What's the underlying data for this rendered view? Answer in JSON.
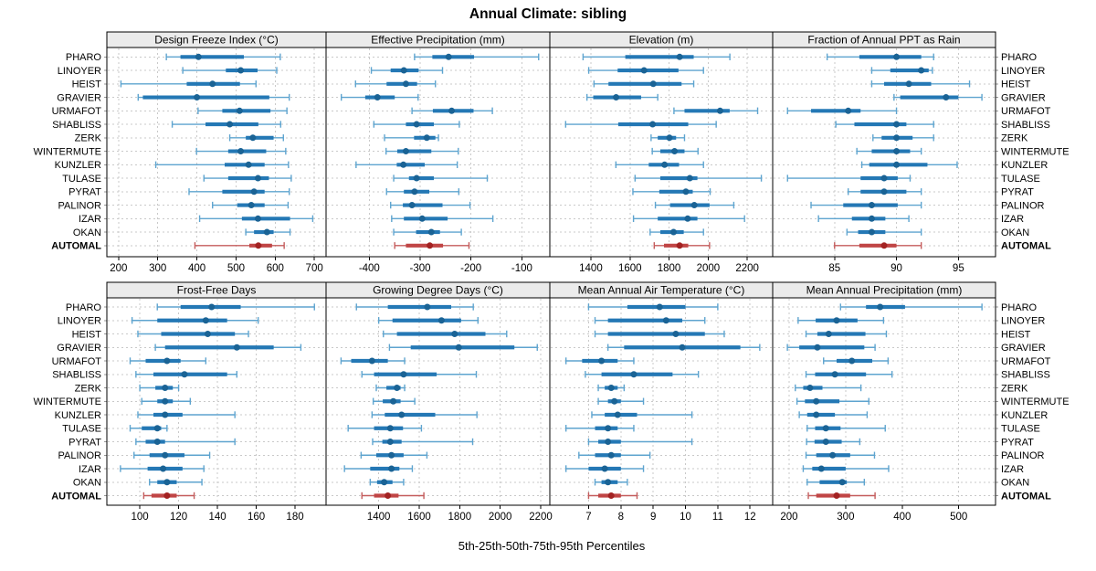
{
  "title": "Annual Climate: sibling",
  "caption": "5th-25th-50th-75th-95th Percentiles",
  "colors": {
    "blue_bar": "#2478b5",
    "blue_dot": "#1a6395",
    "blue_line": "#5ea4cf",
    "red_bar": "#c04545",
    "red_dot": "#a32222",
    "red_line": "#c45c5c",
    "grid": "#c9c9c9",
    "header_bg": "#ebebeb",
    "border": "#000000"
  },
  "chart_data": {
    "type": "percentile-dotplot",
    "layout": "2 rows x 4 columns lattice, shared row categories, dashed grid, bottom axes only",
    "percentiles": [
      "5th",
      "25th",
      "50th",
      "75th",
      "95th"
    ],
    "rows": [
      "PHARO",
      "LINOYER",
      "HEIST",
      "GRAVIER",
      "URMAFOT",
      "SHABLISS",
      "ZERK",
      "WINTERMUTE",
      "KUNZLER",
      "TULASE",
      "PYRAT",
      "PALINOR",
      "IZAR",
      "OKAN",
      "AUTOMAL"
    ],
    "highlight_row": "AUTOMAL",
    "panels": [
      {
        "title": "Design Freeze Index (°C)",
        "xlim": [
          170,
          730
        ],
        "ticks": [
          200,
          300,
          400,
          500,
          600,
          700
        ],
        "values": [
          [
            322,
            358,
            404,
            520,
            613
          ],
          [
            364,
            474,
            512,
            555,
            604
          ],
          [
            206,
            374,
            440,
            510,
            551
          ],
          [
            250,
            262,
            400,
            585,
            636
          ],
          [
            403,
            465,
            509,
            588,
            630
          ],
          [
            337,
            422,
            484,
            557,
            614
          ],
          [
            484,
            525,
            543,
            596,
            621
          ],
          [
            399,
            480,
            512,
            577,
            627
          ],
          [
            295,
            471,
            532,
            573,
            634
          ],
          [
            418,
            480,
            556,
            584,
            641
          ],
          [
            380,
            465,
            546,
            573,
            636
          ],
          [
            440,
            503,
            539,
            573,
            633
          ],
          [
            407,
            515,
            556,
            638,
            696
          ],
          [
            525,
            546,
            579,
            596,
            638
          ],
          [
            395,
            534,
            557,
            592,
            623
          ]
        ]
      },
      {
        "title": "Effective Precipitation (mm)",
        "xlim": [
          -485,
          -45
        ],
        "ticks": [
          -400,
          -300,
          -200,
          -100
        ],
        "values": [
          [
            -311,
            -276,
            -244,
            -194,
            -67
          ],
          [
            -396,
            -358,
            -332,
            -303,
            -256
          ],
          [
            -427,
            -366,
            -328,
            -306,
            -270
          ],
          [
            -455,
            -408,
            -384,
            -350,
            -304
          ],
          [
            -316,
            -275,
            -238,
            -195,
            -158
          ],
          [
            -391,
            -328,
            -307,
            -273,
            -223
          ],
          [
            -370,
            -312,
            -287,
            -270,
            -264
          ],
          [
            -367,
            -345,
            -328,
            -278,
            -225
          ],
          [
            -426,
            -346,
            -333,
            -291,
            -227
          ],
          [
            -352,
            -322,
            -307,
            -273,
            -168
          ],
          [
            -366,
            -332,
            -311,
            -282,
            -224
          ],
          [
            -358,
            -334,
            -316,
            -256,
            -202
          ],
          [
            -356,
            -332,
            -296,
            -246,
            -157
          ],
          [
            -352,
            -308,
            -278,
            -261,
            -219
          ],
          [
            -350,
            -328,
            -281,
            -255,
            -204
          ]
        ]
      },
      {
        "title": "Elevation (m)",
        "xlim": [
          1190,
          2330
        ],
        "ticks": [
          1400,
          1600,
          1800,
          2000,
          2200
        ],
        "values": [
          [
            1360,
            1576,
            1854,
            1926,
            2111
          ],
          [
            1389,
            1537,
            1672,
            1848,
            1976
          ],
          [
            1416,
            1490,
            1719,
            1864,
            1926
          ],
          [
            1380,
            1412,
            1529,
            1657,
            1742
          ],
          [
            1825,
            1879,
            2061,
            2110,
            2253
          ],
          [
            1271,
            1540,
            1716,
            1898,
            2041
          ],
          [
            1708,
            1742,
            1802,
            1836,
            1879
          ],
          [
            1714,
            1755,
            1828,
            1879,
            1948
          ],
          [
            1528,
            1696,
            1777,
            1851,
            1976
          ],
          [
            1626,
            1755,
            1906,
            1945,
            2272
          ],
          [
            1615,
            1750,
            1886,
            1921,
            2010
          ],
          [
            1730,
            1805,
            1929,
            2007,
            2131
          ],
          [
            1618,
            1742,
            1895,
            1945,
            2186
          ],
          [
            1703,
            1755,
            1823,
            1875,
            1976
          ],
          [
            1724,
            1774,
            1854,
            1898,
            2007
          ]
        ]
      },
      {
        "title": "Fraction of Annual PPT as Rain",
        "xlim": [
          80,
          98
        ],
        "ticks": [
          85,
          90,
          95
        ],
        "values": [
          [
            84.4,
            87.0,
            90.0,
            92.0,
            93.0
          ],
          [
            88.0,
            89.5,
            92.0,
            92.6,
            92.9
          ],
          [
            88.0,
            89.0,
            91.0,
            92.8,
            95.9
          ],
          [
            89.8,
            90.3,
            94.0,
            95.0,
            96.9
          ],
          [
            81.2,
            83.1,
            86.1,
            87.1,
            90.0
          ],
          [
            85.1,
            86.6,
            90.0,
            90.8,
            93.0
          ],
          [
            88.1,
            88.8,
            90.0,
            91.3,
            93.0
          ],
          [
            86.8,
            88.0,
            90.0,
            91.1,
            92.0
          ],
          [
            87.2,
            87.8,
            90.0,
            92.5,
            94.9
          ],
          [
            81.2,
            87.1,
            89.0,
            90.1,
            91.1
          ],
          [
            86.1,
            87.1,
            89.0,
            90.8,
            92.0
          ],
          [
            83.1,
            85.7,
            88.0,
            90.1,
            92.0
          ],
          [
            83.7,
            86.4,
            88.0,
            89.1,
            91.0
          ],
          [
            86.0,
            86.9,
            88.0,
            89.1,
            92.0
          ],
          [
            85.0,
            87.0,
            89.0,
            90.0,
            92.0
          ]
        ]
      },
      {
        "title": "Frost-Free Days",
        "xlim": [
          83,
          196
        ],
        "ticks": [
          100,
          120,
          140,
          160,
          180
        ],
        "values": [
          [
            109,
            121,
            137,
            152,
            190
          ],
          [
            96,
            109,
            134,
            145,
            161
          ],
          [
            99,
            111,
            135,
            149,
            156
          ],
          [
            108,
            113,
            150,
            169,
            183
          ],
          [
            95,
            103,
            114,
            121,
            134
          ],
          [
            98,
            107,
            123,
            145,
            150
          ],
          [
            100,
            108,
            113,
            117,
            120
          ],
          [
            101,
            109,
            113,
            117,
            126
          ],
          [
            99,
            107,
            113,
            122,
            149
          ],
          [
            95,
            101,
            109,
            111,
            114
          ],
          [
            98,
            103,
            109,
            113,
            149
          ],
          [
            97,
            105,
            113,
            123,
            136
          ],
          [
            90,
            104,
            112,
            122,
            133
          ],
          [
            105,
            109,
            114,
            119,
            132
          ],
          [
            102,
            106,
            114,
            119,
            128
          ]
        ]
      },
      {
        "title": "Growing Degree Days (°C)",
        "xlim": [
          1140,
          2245
        ],
        "ticks": [
          1400,
          1600,
          1800,
          2000,
          2200
        ],
        "values": [
          [
            1290,
            1445,
            1640,
            1758,
            1867
          ],
          [
            1400,
            1468,
            1710,
            1807,
            1890
          ],
          [
            1423,
            1490,
            1775,
            1927,
            2032
          ],
          [
            1453,
            1558,
            1795,
            2070,
            2183
          ],
          [
            1214,
            1264,
            1367,
            1445,
            1528
          ],
          [
            1317,
            1377,
            1523,
            1686,
            1882
          ],
          [
            1388,
            1438,
            1490,
            1508,
            1528
          ],
          [
            1373,
            1420,
            1472,
            1508,
            1578
          ],
          [
            1367,
            1430,
            1513,
            1679,
            1885
          ],
          [
            1249,
            1377,
            1457,
            1520,
            1611
          ],
          [
            1370,
            1418,
            1457,
            1513,
            1864
          ],
          [
            1313,
            1388,
            1463,
            1523,
            1638
          ],
          [
            1231,
            1358,
            1463,
            1502,
            1566
          ],
          [
            1358,
            1392,
            1427,
            1468,
            1523
          ],
          [
            1317,
            1377,
            1445,
            1498,
            1623
          ]
        ]
      },
      {
        "title": "Mean Annual Air Temperature (°C)",
        "xlim": [
          5.8,
          12.7
        ],
        "ticks": [
          7,
          8,
          9,
          10,
          11,
          12
        ],
        "values": [
          [
            7.0,
            8.2,
            9.2,
            10.0,
            11.0
          ],
          [
            7.2,
            7.6,
            9.4,
            9.9,
            10.6
          ],
          [
            7.2,
            7.6,
            9.7,
            10.6,
            11.2
          ],
          [
            7.6,
            8.1,
            9.9,
            11.7,
            12.3
          ],
          [
            6.3,
            6.8,
            7.4,
            7.9,
            8.4
          ],
          [
            6.9,
            7.4,
            8.4,
            9.6,
            10.4
          ],
          [
            7.3,
            7.5,
            7.7,
            7.9,
            8.1
          ],
          [
            7.3,
            7.6,
            7.8,
            8.0,
            8.7
          ],
          [
            7.1,
            7.5,
            7.9,
            8.5,
            10.2
          ],
          [
            6.3,
            7.2,
            7.6,
            7.9,
            8.4
          ],
          [
            7.0,
            7.3,
            7.6,
            8.0,
            10.2
          ],
          [
            6.7,
            7.2,
            7.7,
            8.0,
            8.9
          ],
          [
            6.3,
            7.0,
            7.5,
            8.0,
            8.7
          ],
          [
            7.2,
            7.4,
            7.6,
            7.9,
            8.2
          ],
          [
            7.0,
            7.3,
            7.7,
            8.0,
            8.5
          ]
        ]
      },
      {
        "title": "Mean Annual Precipitation (mm)",
        "xlim": [
          171,
          565
        ],
        "ticks": [
          200,
          300,
          400,
          500
        ],
        "values": [
          [
            291,
            336,
            361,
            405,
            541
          ],
          [
            216,
            247,
            284,
            321,
            367
          ],
          [
            230,
            250,
            270,
            335,
            372
          ],
          [
            197,
            218,
            250,
            333,
            352
          ],
          [
            261,
            284,
            311,
            347,
            375
          ],
          [
            230,
            246,
            281,
            336,
            382
          ],
          [
            211,
            225,
            237,
            259,
            327
          ],
          [
            214,
            228,
            248,
            289,
            341
          ],
          [
            218,
            232,
            248,
            281,
            338
          ],
          [
            232,
            246,
            265,
            291,
            370
          ],
          [
            231,
            245,
            265,
            293,
            325
          ],
          [
            230,
            248,
            277,
            308,
            351
          ],
          [
            225,
            241,
            257,
            300,
            376
          ],
          [
            232,
            254,
            294,
            302,
            333
          ],
          [
            234,
            248,
            284,
            308,
            352
          ]
        ]
      }
    ]
  }
}
